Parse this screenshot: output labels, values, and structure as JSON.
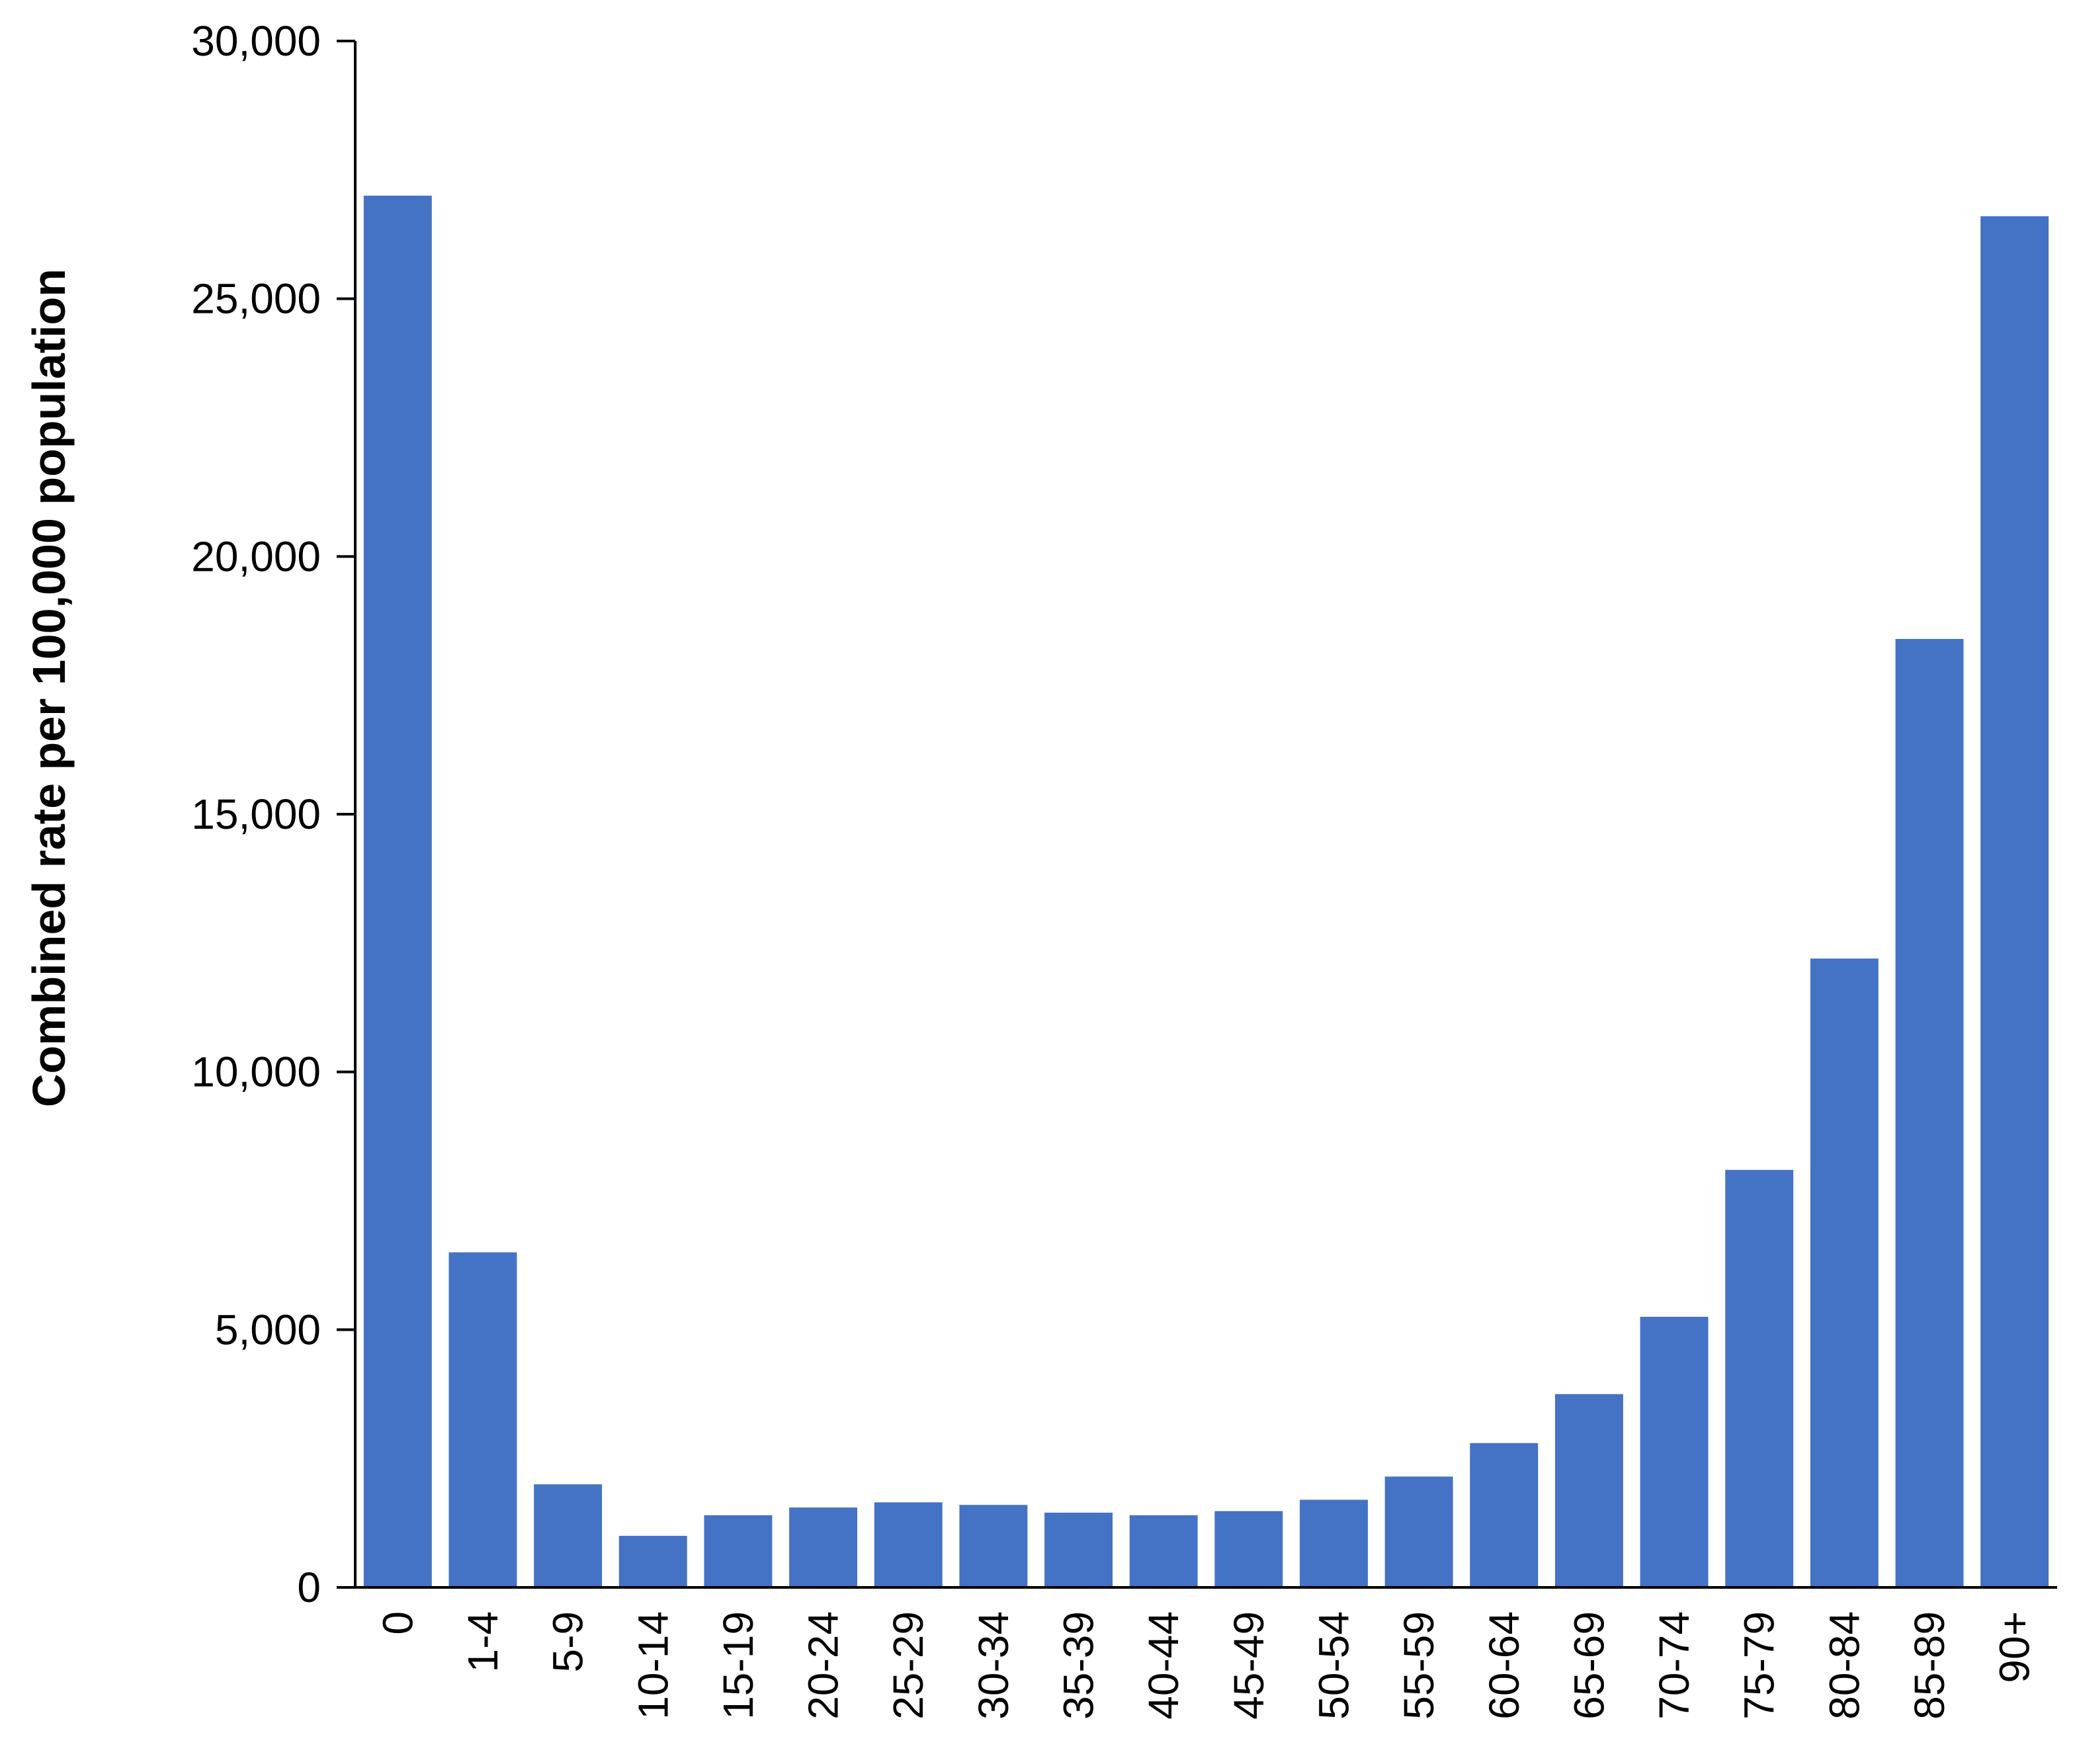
{
  "colors": {
    "bar": "#4472C4",
    "axis": "#000000",
    "background": "#FFFFFF"
  },
  "chart_data": {
    "type": "bar",
    "title": "",
    "xlabel": "",
    "ylabel": "Combined rate per 100,000 population",
    "ylim": [
      0,
      30000
    ],
    "yticks": [
      0,
      5000,
      10000,
      15000,
      20000,
      25000,
      30000
    ],
    "ytick_labels": [
      "0",
      "5,000",
      "10,000",
      "15,000",
      "20,000",
      "25,000",
      "30,000"
    ],
    "categories": [
      "0",
      "1-4",
      "5-9",
      "10-14",
      "15-19",
      "20-24",
      "25-29",
      "30-34",
      "35-39",
      "40-44",
      "45-49",
      "50-54",
      "55-59",
      "60-64",
      "65-69",
      "70-74",
      "75-79",
      "80-84",
      "85-89",
      "90+"
    ],
    "values": [
      27000,
      6500,
      2000,
      1000,
      1400,
      1550,
      1650,
      1600,
      1450,
      1400,
      1480,
      1700,
      2150,
      2800,
      3750,
      5250,
      8100,
      12200,
      18400,
      26600
    ],
    "grid": false,
    "legend": "none"
  }
}
